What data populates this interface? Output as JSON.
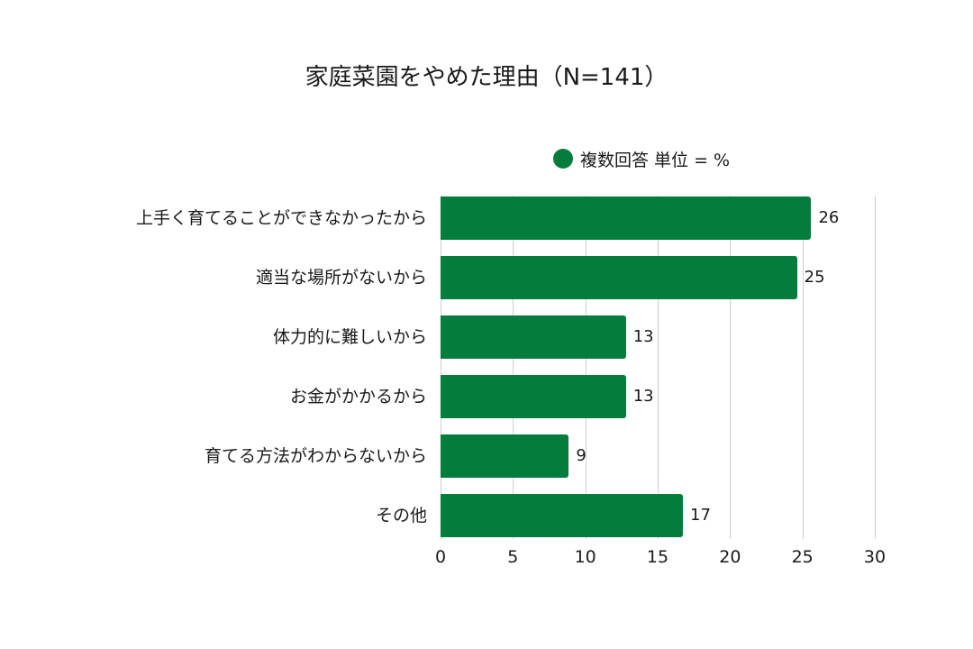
{
  "title": "家庭菜園をやめた理由（N=141）",
  "legend": {
    "label": "複数回答 単位 = %",
    "color": "#047c3b"
  },
  "colors": {
    "bar": "#047c3b",
    "grid": "#cfcfcf",
    "text": "#1a1a1a"
  },
  "chart_data": {
    "type": "bar",
    "orientation": "horizontal",
    "title": "家庭菜園をやめた理由（N=141）",
    "xlabel": "",
    "ylabel": "",
    "categories": [
      "上手く育てることができなかったから",
      "適当な場所がないから",
      "体力的に難しいから",
      "お金がかかるから",
      "育てる方法がわからないから",
      "その他"
    ],
    "series": [
      {
        "name": "複数回答 単位 = %",
        "values": [
          26,
          25,
          13,
          13,
          9,
          17
        ]
      }
    ],
    "xlim": [
      0,
      30
    ],
    "xticks": [
      "0",
      "5",
      "10",
      "15",
      "20",
      "25",
      "30"
    ],
    "grid": true,
    "legend_position": "top",
    "data_labels": [
      "26",
      "25",
      "13",
      "13",
      "9",
      "17"
    ]
  }
}
